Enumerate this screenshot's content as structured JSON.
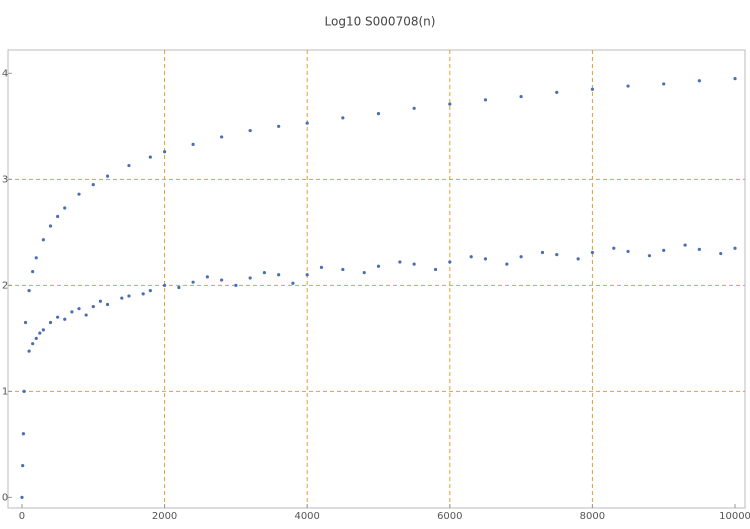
{
  "chart_data": {
    "type": "scatter",
    "title": "Log10 S000708(n)",
    "xlim": [
      -196,
      10140
    ],
    "ylim": [
      -0.1,
      4.22
    ],
    "xticks": [
      0,
      2000,
      4000,
      6000,
      8000,
      10000
    ],
    "yticks": [
      0,
      1,
      2,
      3,
      4
    ],
    "grid": true,
    "grid_color": "#e0a030",
    "series": [
      {
        "color": "#4a6fb0",
        "x": [
          0,
          10,
          20,
          30,
          50,
          100,
          150,
          200,
          300,
          400,
          500,
          600,
          800,
          1000,
          1200,
          1500,
          1800,
          2000,
          2400,
          2800,
          3200,
          3600,
          4000,
          4500,
          5000,
          5500,
          6000,
          6500,
          7000,
          7500,
          8000,
          8500,
          9000,
          9500,
          10000
        ],
        "values": [
          0,
          0.3,
          0.6,
          1.0,
          1.65,
          1.95,
          2.13,
          2.26,
          2.43,
          2.56,
          2.65,
          2.73,
          2.86,
          2.95,
          3.03,
          3.13,
          3.21,
          3.26,
          3.33,
          3.4,
          3.46,
          3.5,
          3.53,
          3.58,
          3.62,
          3.67,
          3.71,
          3.75,
          3.78,
          3.82,
          3.85,
          3.88,
          3.9,
          3.93,
          3.95
        ]
      },
      {
        "color": "#4a6fb0",
        "x": [
          100,
          150,
          200,
          250,
          300,
          400,
          500,
          600,
          700,
          800,
          900,
          1000,
          1100,
          1200,
          1400,
          1500,
          1700,
          1800,
          2000,
          2200,
          2400,
          2600,
          2800,
          3000,
          3200,
          3400,
          3600,
          3800,
          4000,
          4200,
          4500,
          4800,
          5000,
          5300,
          5500,
          5800,
          6000,
          6300,
          6500,
          6800,
          7000,
          7300,
          7500,
          7800,
          8000,
          8300,
          8500,
          8800,
          9000,
          9300,
          9500,
          9800,
          10000
        ],
        "values": [
          1.38,
          1.45,
          1.5,
          1.55,
          1.58,
          1.65,
          1.7,
          1.68,
          1.75,
          1.78,
          1.72,
          1.8,
          1.85,
          1.82,
          1.88,
          1.9,
          1.92,
          1.95,
          2.0,
          1.98,
          2.03,
          2.08,
          2.05,
          2.0,
          2.07,
          2.12,
          2.1,
          2.02,
          2.1,
          2.17,
          2.15,
          2.12,
          2.18,
          2.22,
          2.2,
          2.15,
          2.22,
          2.27,
          2.25,
          2.2,
          2.27,
          2.31,
          2.29,
          2.25,
          2.31,
          2.35,
          2.32,
          2.28,
          2.33,
          2.38,
          2.34,
          2.3,
          2.35
        ]
      }
    ]
  }
}
